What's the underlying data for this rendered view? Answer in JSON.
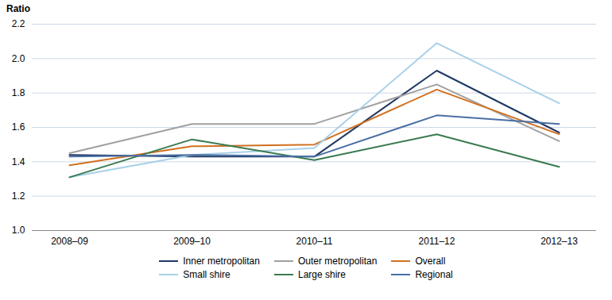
{
  "chart_data": {
    "type": "line",
    "ylabel": "Ratio",
    "categories": [
      "2008–09",
      "2009–10",
      "2010–11",
      "2011–12",
      "2012–13"
    ],
    "series": [
      {
        "name": "Inner metropolitan",
        "color": "#1f3864",
        "values": [
          1.44,
          1.43,
          1.43,
          1.93,
          1.57
        ]
      },
      {
        "name": "Outer metropolitan",
        "color": "#a0a0a0",
        "values": [
          1.45,
          1.62,
          1.62,
          1.85,
          1.52
        ]
      },
      {
        "name": "Overall",
        "color": "#d07020",
        "values": [
          1.38,
          1.49,
          1.5,
          1.82,
          1.56
        ]
      },
      {
        "name": "Small shire",
        "color": "#a8d0e8",
        "values": [
          1.31,
          1.44,
          1.48,
          2.09,
          1.74
        ]
      },
      {
        "name": "Large shire",
        "color": "#3a7a50",
        "values": [
          1.31,
          1.53,
          1.41,
          1.56,
          1.37
        ]
      },
      {
        "name": "Regional",
        "color": "#4a6fa5",
        "values": [
          1.43,
          1.44,
          1.43,
          1.67,
          1.62
        ]
      }
    ],
    "ylim": [
      1.0,
      2.2
    ],
    "yticks": [
      {
        "value": 1.0,
        "label": "1.0"
      },
      1.2,
      1.4,
      1.6,
      1.8,
      {
        "value": 2.0,
        "label": "2.0"
      },
      2.2
    ],
    "grid": true,
    "legend": "bottom"
  }
}
